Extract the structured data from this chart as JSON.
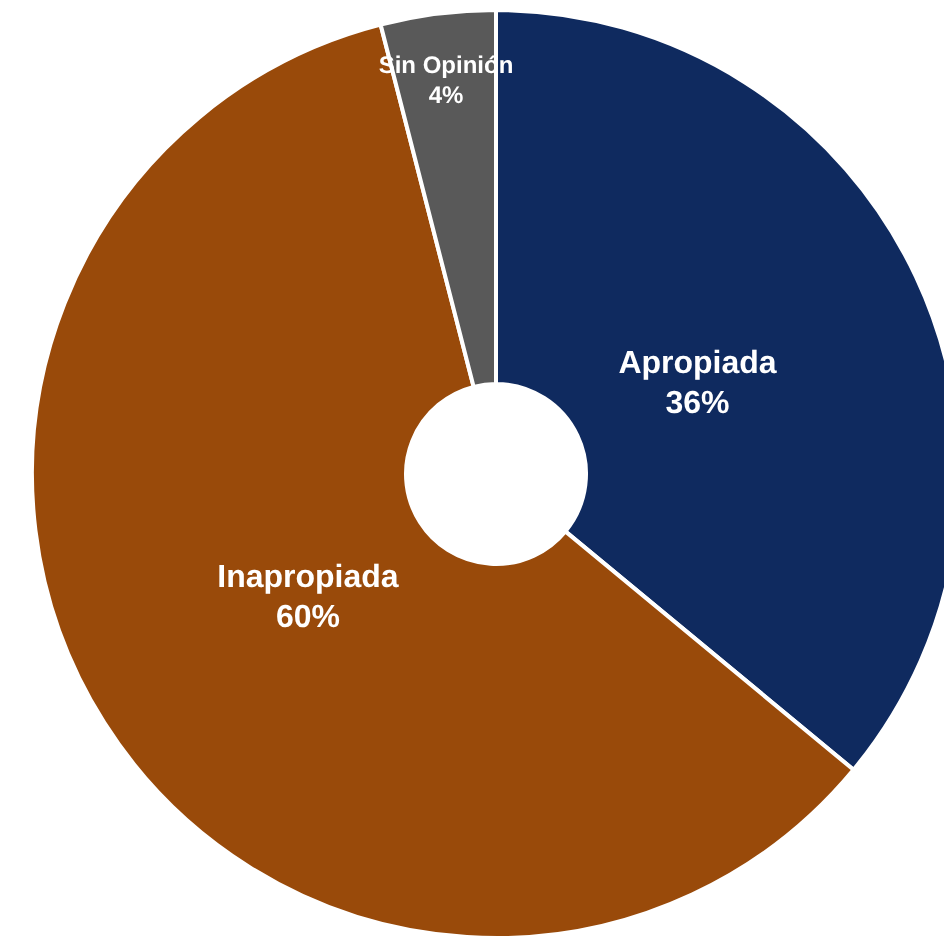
{
  "chart_data": {
    "type": "donut",
    "categories": [
      "Apropiada",
      "Inapropiada",
      "Sin Opinión"
    ],
    "values": [
      36,
      60,
      4
    ],
    "colors": [
      "#0f2a5f",
      "#994a0a",
      "#595959"
    ],
    "value_labels": [
      "36%",
      "60%",
      "4%"
    ]
  }
}
